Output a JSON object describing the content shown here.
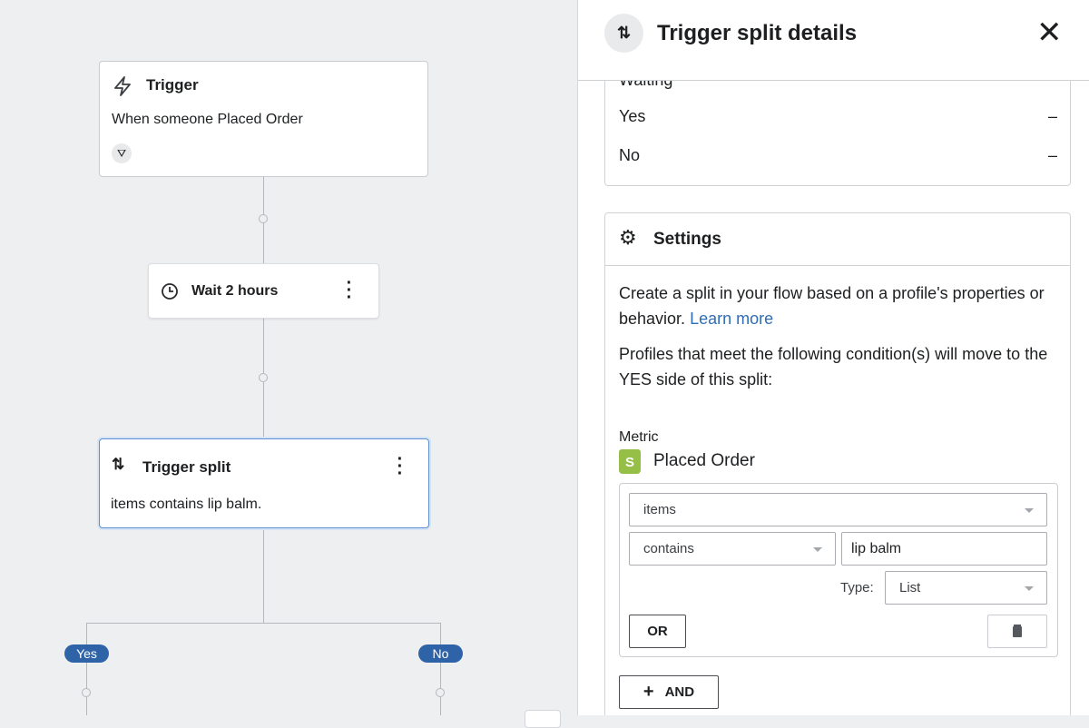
{
  "canvas": {
    "trigger": {
      "title": "Trigger",
      "description": "When someone Placed Order"
    },
    "wait": {
      "title": "Wait 2 hours"
    },
    "split": {
      "title": "Trigger split",
      "description": "items contains lip balm."
    },
    "branches": {
      "yes": "Yes",
      "no": "No"
    }
  },
  "panel": {
    "title": "Trigger split details",
    "stats": {
      "partial_label": "Waiting",
      "rows": [
        {
          "label": "Yes",
          "value": "–"
        },
        {
          "label": "No",
          "value": "–"
        }
      ]
    },
    "settings": {
      "title": "Settings",
      "intro": "Create a split in your flow based on a profile's properties or behavior.",
      "learn_more": "Learn more",
      "condition_text": "Profiles that meet the following condition(s) will move to the YES side of this split:",
      "metric_label": "Metric",
      "metric_value": "Placed Order",
      "property_select": "items",
      "operator_select": "contains",
      "value_input": "lip balm",
      "type_label": "Type:",
      "type_select": "List",
      "or_button": "OR",
      "and_button": "AND"
    }
  },
  "colors": {
    "accent": "#2f63a8",
    "link": "#2f6db5",
    "shopify": "#95bf47"
  }
}
